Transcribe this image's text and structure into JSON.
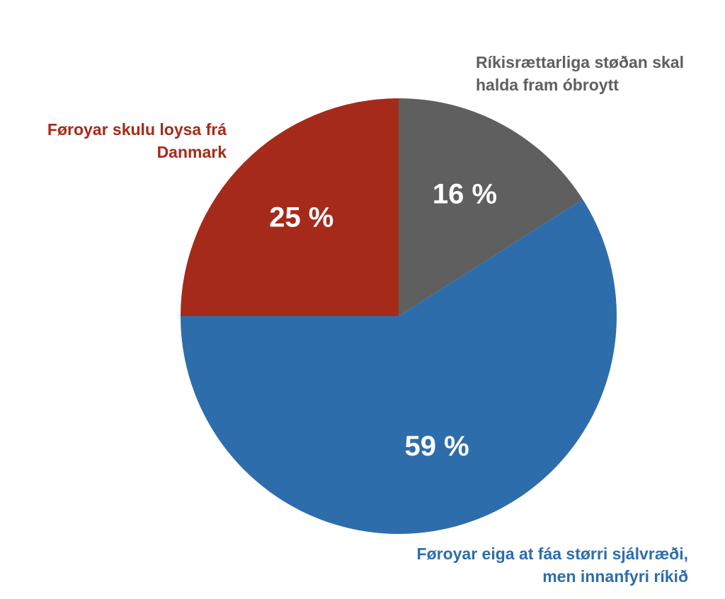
{
  "chart_data": {
    "type": "pie",
    "categories": [
      "Ríkisrættarliga støðan skal halda fram óbroytt",
      "Føroyar eiga at fáa størri sjálvræði, men innanfyri ríkið",
      "Føroyar skulu loysa frá Danmark"
    ],
    "values": [
      16,
      59,
      25
    ],
    "value_labels": [
      "16 %",
      "59 %",
      "25 %"
    ],
    "colors": [
      "#5f5f5f",
      "#2e6dab",
      "#a52a1a"
    ]
  }
}
